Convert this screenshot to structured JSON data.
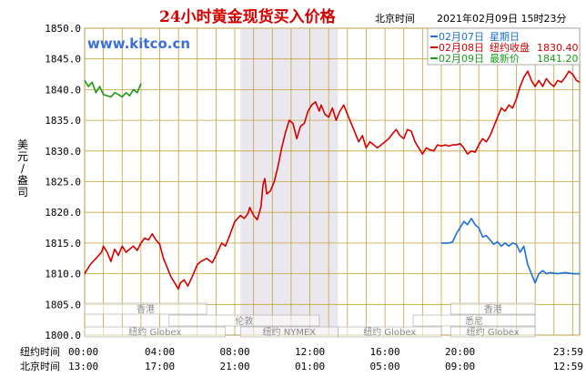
{
  "title": "24小时黄金现货买入价格",
  "beijing_time_label": "北京时间",
  "timestamp": "2021年02月09日 15时23分",
  "watermark": "www.kitco.cn",
  "y_axis_label": [
    "美",
    "元",
    "/",
    "盎",
    "司"
  ],
  "legend": [
    {
      "date": "02月07日",
      "desc": "星期日",
      "value": "",
      "color": "#1a6fd8"
    },
    {
      "date": "02月08日",
      "desc": "纽约收盘",
      "value": "1830.40",
      "color": "#d40000"
    },
    {
      "date": "02月09日",
      "desc": "最新价",
      "value": "1841.20",
      "color": "#1a9a1a"
    }
  ],
  "row_labels": {
    "ny": "纽约时间",
    "bj": "北京时间"
  },
  "ny_times": [
    "00:00",
    "04:00",
    "08:00",
    "12:00",
    "16:00",
    "20:00",
    "23:59"
  ],
  "bj_times": [
    "13:00",
    "17:00",
    "21:00",
    "01:00",
    "05:00",
    "09:00",
    "12:59"
  ],
  "sessions": [
    {
      "label": "香港",
      "start": 0,
      "end": 6.5,
      "row": 1
    },
    {
      "label": "伦敦",
      "start": 4.5,
      "end": 12.5,
      "row": 2
    },
    {
      "label": "纽约 Globex",
      "start": 0,
      "end": 7.5,
      "row": 3
    },
    {
      "label": "纽约 NYMEX",
      "start": 8.3,
      "end": 13.5,
      "row": 3
    },
    {
      "label": "纽约 Globex",
      "start": 13.5,
      "end": 19,
      "row": 3
    },
    {
      "label": "悉尼",
      "start": 17.5,
      "end": 24,
      "row": 2
    },
    {
      "label": "香港",
      "start": 19.5,
      "end": 24,
      "row": 1
    },
    {
      "label": "纽约 Globex",
      "start": 19.5,
      "end": 24,
      "row": 3
    }
  ],
  "chart_data": {
    "type": "line",
    "x_unit": "New York hour (0–24)",
    "ylim": [
      1800,
      1850
    ],
    "yticks": [
      1800,
      1805,
      1810,
      1815,
      1820,
      1825,
      1830,
      1835,
      1840,
      1845,
      1850
    ],
    "nymex_shade": [
      8.3,
      13.5
    ],
    "series": [
      {
        "name": "02月08日",
        "color": "#d40000",
        "points": [
          [
            0,
            1810.0
          ],
          [
            0.3,
            1811.5
          ],
          [
            0.6,
            1812.5
          ],
          [
            0.9,
            1813.5
          ],
          [
            1.0,
            1814.5
          ],
          [
            1.2,
            1813.5
          ],
          [
            1.4,
            1812.0
          ],
          [
            1.6,
            1814.0
          ],
          [
            1.8,
            1813.0
          ],
          [
            2.0,
            1814.5
          ],
          [
            2.2,
            1813.5
          ],
          [
            2.4,
            1814.0
          ],
          [
            2.6,
            1814.5
          ],
          [
            2.8,
            1813.8
          ],
          [
            3.0,
            1815.0
          ],
          [
            3.2,
            1815.8
          ],
          [
            3.4,
            1815.5
          ],
          [
            3.6,
            1816.5
          ],
          [
            3.8,
            1815.5
          ],
          [
            4.0,
            1814.8
          ],
          [
            4.2,
            1812.5
          ],
          [
            4.4,
            1811.0
          ],
          [
            4.6,
            1809.5
          ],
          [
            4.8,
            1808.5
          ],
          [
            5.0,
            1807.5
          ],
          [
            5.1,
            1808.5
          ],
          [
            5.3,
            1809.0
          ],
          [
            5.5,
            1808.0
          ],
          [
            5.8,
            1810.0
          ],
          [
            6.0,
            1811.5
          ],
          [
            6.2,
            1812.0
          ],
          [
            6.5,
            1812.5
          ],
          [
            6.8,
            1811.8
          ],
          [
            7.0,
            1813.0
          ],
          [
            7.3,
            1815.0
          ],
          [
            7.5,
            1814.5
          ],
          [
            7.7,
            1816.0
          ],
          [
            8.0,
            1818.5
          ],
          [
            8.3,
            1819.5
          ],
          [
            8.5,
            1819.0
          ],
          [
            8.7,
            1819.8
          ],
          [
            8.8,
            1820.8
          ],
          [
            9.0,
            1819.5
          ],
          [
            9.2,
            1818.8
          ],
          [
            9.4,
            1821.0
          ],
          [
            9.5,
            1824.5
          ],
          [
            9.6,
            1825.5
          ],
          [
            9.7,
            1823.0
          ],
          [
            9.9,
            1823.5
          ],
          [
            10.1,
            1825.0
          ],
          [
            10.3,
            1827.5
          ],
          [
            10.5,
            1830.5
          ],
          [
            10.7,
            1833.0
          ],
          [
            10.9,
            1835.0
          ],
          [
            11.1,
            1834.5
          ],
          [
            11.3,
            1832.0
          ],
          [
            11.5,
            1834.0
          ],
          [
            11.7,
            1834.5
          ],
          [
            11.9,
            1836.5
          ],
          [
            12.1,
            1837.5
          ],
          [
            12.3,
            1838.0
          ],
          [
            12.5,
            1836.5
          ],
          [
            12.6,
            1837.5
          ],
          [
            12.8,
            1836.0
          ],
          [
            13.0,
            1835.5
          ],
          [
            13.2,
            1837.0
          ],
          [
            13.4,
            1835.0
          ],
          [
            13.6,
            1836.5
          ],
          [
            13.8,
            1837.5
          ],
          [
            14.0,
            1836.0
          ],
          [
            14.2,
            1834.5
          ],
          [
            14.4,
            1833.0
          ],
          [
            14.6,
            1831.5
          ],
          [
            14.8,
            1832.5
          ],
          [
            15.0,
            1830.5
          ],
          [
            15.2,
            1831.5
          ],
          [
            15.4,
            1831.0
          ],
          [
            15.6,
            1830.5
          ],
          [
            15.8,
            1831.0
          ],
          [
            16.0,
            1831.5
          ],
          [
            16.2,
            1832.0
          ],
          [
            16.4,
            1832.8
          ],
          [
            16.6,
            1833.5
          ],
          [
            16.8,
            1832.5
          ],
          [
            17.0,
            1832.0
          ],
          [
            17.2,
            1833.5
          ],
          [
            17.4,
            1833.2
          ],
          [
            17.6,
            1831.5
          ],
          [
            17.8,
            1830.5
          ],
          [
            18.0,
            1829.5
          ],
          [
            18.2,
            1830.5
          ],
          [
            18.4,
            1830.2
          ],
          [
            18.6,
            1830.0
          ],
          [
            18.8,
            1831.0
          ],
          [
            19.0,
            1830.8
          ],
          [
            19.2,
            1831.0
          ],
          [
            19.4,
            1830.8
          ],
          [
            19.6,
            1831.0
          ],
          [
            19.8,
            1831.0
          ],
          [
            20.0,
            1831.2
          ],
          [
            20.2,
            1830.5
          ],
          [
            20.4,
            1829.5
          ],
          [
            20.6,
            1830.0
          ],
          [
            20.8,
            1829.8
          ],
          [
            21.0,
            1831.0
          ],
          [
            21.2,
            1832.0
          ],
          [
            21.4,
            1831.5
          ],
          [
            21.6,
            1832.5
          ],
          [
            21.8,
            1834.0
          ],
          [
            22.0,
            1835.5
          ],
          [
            22.2,
            1837.0
          ],
          [
            22.4,
            1836.5
          ],
          [
            22.6,
            1837.5
          ],
          [
            22.8,
            1837.0
          ],
          [
            23.0,
            1838.5
          ],
          [
            23.2,
            1840.5
          ],
          [
            23.4,
            1842.0
          ],
          [
            23.6,
            1843.0
          ],
          [
            23.8,
            1841.5
          ],
          [
            24.0,
            1840.5
          ],
          [
            24.2,
            1841.5
          ],
          [
            24.4,
            1840.5
          ],
          [
            24.6,
            1841.8
          ],
          [
            24.8,
            1841.0
          ],
          [
            25.0,
            1840.5
          ],
          [
            25.2,
            1841.5
          ],
          [
            25.4,
            1841.2
          ],
          [
            25.6,
            1842.0
          ],
          [
            25.8,
            1843.0
          ],
          [
            26.0,
            1842.5
          ],
          [
            26.2,
            1841.5
          ],
          [
            26.37,
            1841.2
          ]
        ]
      },
      {
        "name": "02月07日",
        "color": "#1a6fd8",
        "points": [
          [
            19.0,
            1815.0
          ],
          [
            19.4,
            1815.0
          ],
          [
            19.6,
            1815.2
          ],
          [
            19.8,
            1816.5
          ],
          [
            20.0,
            1817.5
          ],
          [
            20.2,
            1818.5
          ],
          [
            20.4,
            1818.0
          ],
          [
            20.6,
            1819.0
          ],
          [
            20.8,
            1818.0
          ],
          [
            21.0,
            1817.5
          ],
          [
            21.2,
            1816.0
          ],
          [
            21.4,
            1816.2
          ],
          [
            21.6,
            1815.5
          ],
          [
            21.8,
            1814.8
          ],
          [
            22.0,
            1815.2
          ],
          [
            22.2,
            1814.5
          ],
          [
            22.4,
            1815.0
          ],
          [
            22.6,
            1814.5
          ],
          [
            22.8,
            1815.0
          ],
          [
            23.0,
            1814.8
          ],
          [
            23.2,
            1813.5
          ],
          [
            23.4,
            1814.5
          ],
          [
            23.6,
            1811.5
          ],
          [
            23.8,
            1810.0
          ],
          [
            24.0,
            1808.5
          ],
          [
            24.2,
            1810.0
          ],
          [
            24.4,
            1810.5
          ],
          [
            24.6,
            1810.0
          ],
          [
            24.8,
            1810.2
          ],
          [
            25.2,
            1810.0
          ],
          [
            25.6,
            1810.2
          ],
          [
            26.0,
            1810.0
          ],
          [
            26.37,
            1810.0
          ]
        ]
      },
      {
        "name": "02月09日",
        "color": "#1a9a1a",
        "points": [
          [
            0,
            1841.5
          ],
          [
            0.2,
            1840.5
          ],
          [
            0.4,
            1841.2
          ],
          [
            0.6,
            1839.5
          ],
          [
            0.8,
            1840.5
          ],
          [
            1.0,
            1839.2
          ],
          [
            1.2,
            1839.0
          ],
          [
            1.4,
            1838.8
          ],
          [
            1.6,
            1839.5
          ],
          [
            1.8,
            1839.2
          ],
          [
            2.0,
            1838.8
          ],
          [
            2.2,
            1839.5
          ],
          [
            2.4,
            1839.0
          ],
          [
            2.6,
            1840.0
          ],
          [
            2.8,
            1839.5
          ],
          [
            3.0,
            1841.0
          ]
        ]
      }
    ]
  }
}
